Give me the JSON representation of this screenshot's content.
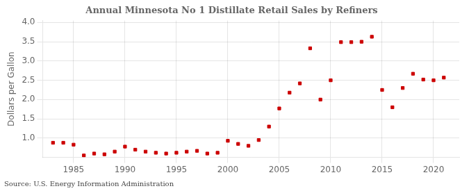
{
  "chart_data": {
    "type": "scatter",
    "title": "Annual Minnesota No 1 Distillate Retail Sales by Refiners",
    "y_label": "Dollars per Gallon",
    "annotations": [
      "Source: U.S. Energy Information Administration"
    ],
    "x": [
      1983,
      1984,
      1985,
      1986,
      1987,
      1988,
      1989,
      1990,
      1991,
      1992,
      1993,
      1994,
      1995,
      1996,
      1997,
      1998,
      1999,
      2000,
      2001,
      2002,
      2003,
      2004,
      2005,
      2006,
      2007,
      2008,
      2009,
      2010,
      2011,
      2012,
      2013,
      2014,
      2015,
      2016,
      2017,
      2018,
      2019,
      2020,
      2021
    ],
    "values": [
      0.88,
      0.88,
      0.83,
      0.55,
      0.6,
      0.58,
      0.65,
      0.78,
      0.7,
      0.65,
      0.62,
      0.6,
      0.62,
      0.65,
      0.67,
      0.6,
      0.62,
      0.93,
      0.85,
      0.8,
      0.95,
      1.3,
      1.77,
      2.18,
      2.42,
      3.33,
      2.0,
      2.5,
      3.49,
      3.49,
      3.5,
      3.63,
      2.25,
      1.8,
      2.3,
      2.67,
      2.52,
      2.5,
      2.57
    ],
    "color": "#cc0000",
    "marker": "square",
    "xlim": [
      1982,
      2022.5
    ],
    "xticks": [
      1985,
      1990,
      1995,
      2000,
      2005,
      2010,
      2015,
      2020
    ],
    "ylim": [
      0.5,
      4.05
    ],
    "yticks": [
      {
        "value": 1.0,
        "label": "1.0"
      },
      1.5,
      {
        "value": 2.0,
        "label": "2.0"
      },
      2.5,
      {
        "value": 3.0,
        "label": "3.0"
      },
      3.5,
      {
        "value": 4.0,
        "label": "4.0"
      }
    ],
    "grid": true
  }
}
